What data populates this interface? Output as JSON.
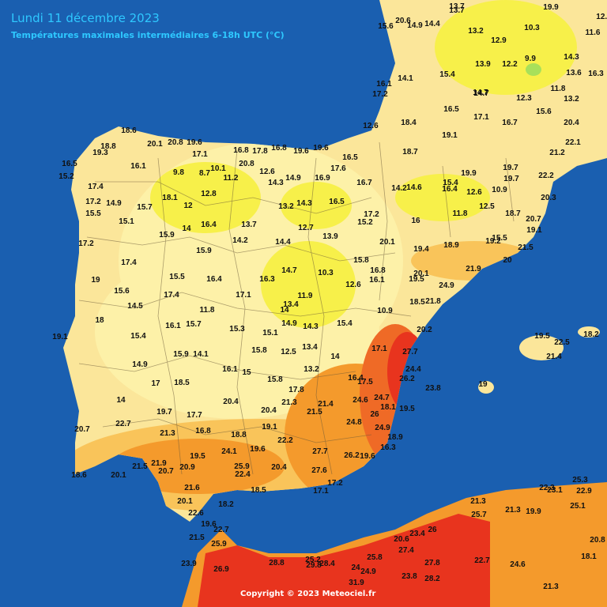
{
  "header": {
    "title": "Lundi 11 décembre 2023",
    "subtitle": "Températures maximales intermédiaires 6-18h UTC (°C)"
  },
  "copyright": "Copyright © 2023 Meteociel.fr",
  "colors": {
    "sea": "#1a5fb0",
    "temp_9_10": "#a8e05a",
    "temp_10_14": "#f7f04a",
    "temp_14_18": "#fdf1a8",
    "temp_18_20": "#fbe69a",
    "temp_20_22": "#f9c45a",
    "temp_22_24": "#f49a2c",
    "temp_24_26": "#ef6a26",
    "temp_26_30": "#e8341e"
  },
  "stations": [
    {
      "value": "18.6"
    },
    {
      "value": "20.1"
    },
    {
      "value": "20.8"
    },
    {
      "value": "19.6"
    },
    {
      "value": "17.1"
    },
    {
      "value": "16.8"
    },
    {
      "value": "17.8"
    },
    {
      "value": "16.8"
    },
    {
      "value": "19.6"
    },
    {
      "value": "19.6"
    },
    {
      "value": "19.3"
    },
    {
      "value": "18.8"
    },
    {
      "value": "16.5"
    },
    {
      "value": "15.2"
    },
    {
      "value": "16.1"
    },
    {
      "value": "9.8"
    },
    {
      "value": "8.7"
    },
    {
      "value": "10.1"
    },
    {
      "value": "11.2"
    },
    {
      "value": "20.8"
    },
    {
      "value": "12.6"
    },
    {
      "value": "14.3"
    },
    {
      "value": "14.9"
    },
    {
      "value": "16.9"
    },
    {
      "value": "17.6"
    },
    {
      "value": "16.5"
    },
    {
      "value": "16.7"
    },
    {
      "value": "17.4"
    },
    {
      "value": "12.8"
    },
    {
      "value": "18.1"
    },
    {
      "value": "12"
    },
    {
      "value": "14.9"
    },
    {
      "value": "15.7"
    },
    {
      "value": "17.2"
    },
    {
      "value": "15.5"
    },
    {
      "value": "15.1"
    },
    {
      "value": "16.4"
    },
    {
      "value": "14"
    },
    {
      "value": "15.9"
    },
    {
      "value": "13.7"
    },
    {
      "value": "13.2"
    },
    {
      "value": "14.3"
    },
    {
      "value": "16.5"
    },
    {
      "value": "17.2"
    },
    {
      "value": "15.2"
    },
    {
      "value": "12.7"
    },
    {
      "value": "13.9"
    },
    {
      "value": "14.2"
    },
    {
      "value": "14.4"
    },
    {
      "value": "17.2"
    },
    {
      "value": "17.4"
    },
    {
      "value": "15.9"
    },
    {
      "value": "16.3"
    },
    {
      "value": "14.7"
    },
    {
      "value": "10.3"
    },
    {
      "value": "15.8"
    },
    {
      "value": "16.8"
    },
    {
      "value": "16.1"
    },
    {
      "value": "12.6"
    },
    {
      "value": "15.5"
    },
    {
      "value": "16.4"
    },
    {
      "value": "19"
    },
    {
      "value": "15.6"
    },
    {
      "value": "17.4"
    },
    {
      "value": "17.1"
    },
    {
      "value": "11.9"
    },
    {
      "value": "14.5"
    },
    {
      "value": "11.8"
    },
    {
      "value": "13.4"
    },
    {
      "value": "14"
    },
    {
      "value": "18"
    },
    {
      "value": "16.1"
    },
    {
      "value": "15.7"
    },
    {
      "value": "15.3"
    },
    {
      "value": "15.1"
    },
    {
      "value": "14.9"
    },
    {
      "value": "14.3"
    },
    {
      "value": "15.4"
    },
    {
      "value": "10.9"
    },
    {
      "value": "19.1"
    },
    {
      "value": "15.4"
    },
    {
      "value": "15.9"
    },
    {
      "value": "14.1"
    },
    {
      "value": "15.8"
    },
    {
      "value": "12.5"
    },
    {
      "value": "13.4"
    },
    {
      "value": "14"
    },
    {
      "value": "17.1"
    },
    {
      "value": "14.9"
    },
    {
      "value": "16.1"
    },
    {
      "value": "15"
    },
    {
      "value": "15.8"
    },
    {
      "value": "13.2"
    },
    {
      "value": "16.4"
    },
    {
      "value": "17.5"
    },
    {
      "value": "17"
    },
    {
      "value": "18.5"
    },
    {
      "value": "17.8"
    },
    {
      "value": "14"
    },
    {
      "value": "20.4"
    },
    {
      "value": "20.4"
    },
    {
      "value": "21.3"
    },
    {
      "value": "21.5"
    },
    {
      "value": "21.4"
    },
    {
      "value": "24.6"
    },
    {
      "value": "24.7"
    },
    {
      "value": "18.1"
    },
    {
      "value": "19.7"
    },
    {
      "value": "17.7"
    },
    {
      "value": "22.7"
    },
    {
      "value": "24.8"
    },
    {
      "value": "26"
    },
    {
      "value": "24.9"
    },
    {
      "value": "19.5"
    },
    {
      "value": "20.7"
    },
    {
      "value": "21.3"
    },
    {
      "value": "16.8"
    },
    {
      "value": "18.8"
    },
    {
      "value": "19.1"
    },
    {
      "value": "22.2"
    },
    {
      "value": "18.9"
    },
    {
      "value": "19.5"
    },
    {
      "value": "24.1"
    },
    {
      "value": "19.6"
    },
    {
      "value": "27.7"
    },
    {
      "value": "26.2"
    },
    {
      "value": "19.6"
    },
    {
      "value": "16.3"
    },
    {
      "value": "21.9"
    },
    {
      "value": "20.9"
    },
    {
      "value": "25.9"
    },
    {
      "value": "20.4"
    },
    {
      "value": "27.6"
    },
    {
      "value": "18.6"
    },
    {
      "value": "20.1"
    },
    {
      "value": "21.5"
    },
    {
      "value": "20.7"
    },
    {
      "value": "22.4"
    },
    {
      "value": "18.5"
    },
    {
      "value": "17.2"
    },
    {
      "value": "17.1"
    },
    {
      "value": "21.6"
    },
    {
      "value": "20.1"
    },
    {
      "value": "18.2"
    },
    {
      "value": "22.6"
    },
    {
      "value": "19.6"
    },
    {
      "value": "22.7"
    },
    {
      "value": "21.5"
    },
    {
      "value": "25.9"
    },
    {
      "value": "23.9"
    },
    {
      "value": "26.9"
    },
    {
      "value": "28.8"
    },
    {
      "value": "25.2"
    },
    {
      "value": "29.8"
    },
    {
      "value": "28.4"
    },
    {
      "value": "24"
    },
    {
      "value": "24.9"
    },
    {
      "value": "25.8"
    },
    {
      "value": "31.9"
    },
    {
      "value": "23.8"
    },
    {
      "value": "28.2"
    },
    {
      "value": "27.8"
    },
    {
      "value": "22.7"
    },
    {
      "value": "24.6"
    },
    {
      "value": "20.6"
    },
    {
      "value": "27.4"
    },
    {
      "value": "23.4"
    },
    {
      "value": "26"
    },
    {
      "value": "25.7"
    },
    {
      "value": "21.3"
    },
    {
      "value": "21.3"
    },
    {
      "value": "19.9"
    },
    {
      "value": "22.3"
    },
    {
      "value": "23.1"
    },
    {
      "value": "25.3"
    },
    {
      "value": "22.9"
    },
    {
      "value": "25.1"
    },
    {
      "value": "20.8"
    },
    {
      "value": "18.1"
    },
    {
      "value": "21.3"
    },
    {
      "value": "23.8"
    },
    {
      "value": "26.2"
    },
    {
      "value": "24.4"
    },
    {
      "value": "27.7"
    },
    {
      "value": "20.2"
    },
    {
      "value": "21.8"
    },
    {
      "value": "18.5"
    },
    {
      "value": "24.9"
    },
    {
      "value": "20.1"
    },
    {
      "value": "19.5"
    },
    {
      "value": "21.9"
    },
    {
      "value": "18.9"
    },
    {
      "value": "19.4"
    },
    {
      "value": "20.1"
    },
    {
      "value": "16"
    },
    {
      "value": "11.8"
    },
    {
      "value": "14.6"
    },
    {
      "value": "14.2"
    },
    {
      "value": "15.4"
    },
    {
      "value": "16.4"
    },
    {
      "value": "12.6"
    },
    {
      "value": "19.1"
    },
    {
      "value": "18.7"
    },
    {
      "value": "19.9"
    },
    {
      "value": "18.4"
    },
    {
      "value": "16.5"
    },
    {
      "value": "17.1"
    },
    {
      "value": "16.7"
    },
    {
      "value": "15.4"
    },
    {
      "value": "14.1"
    },
    {
      "value": "14.9"
    },
    {
      "value": "14.4"
    },
    {
      "value": "13.7"
    },
    {
      "value": "13.2"
    },
    {
      "value": "12.9"
    },
    {
      "value": "10.3"
    },
    {
      "value": "9.9"
    },
    {
      "value": "12.2"
    },
    {
      "value": "13.9"
    },
    {
      "value": "14.3"
    },
    {
      "value": "16.3"
    },
    {
      "value": "13.6"
    },
    {
      "value": "11.8"
    },
    {
      "value": "13.2"
    },
    {
      "value": "12.3"
    },
    {
      "value": "14.7"
    },
    {
      "value": "15.6"
    },
    {
      "value": "20.4"
    },
    {
      "value": "22.1"
    },
    {
      "value": "21.2"
    },
    {
      "value": "22.2"
    },
    {
      "value": "20.3"
    },
    {
      "value": "20.7"
    },
    {
      "value": "19.1"
    },
    {
      "value": "21.5"
    },
    {
      "value": "20"
    },
    {
      "value": "19.2"
    },
    {
      "value": "19.7"
    },
    {
      "value": "10.9"
    },
    {
      "value": "12.5"
    },
    {
      "value": "19.5"
    },
    {
      "value": "22.5"
    },
    {
      "value": "21.4"
    },
    {
      "value": "18.2"
    },
    {
      "value": "19"
    },
    {
      "value": "15.6"
    },
    {
      "value": "16.1"
    },
    {
      "value": "17.2"
    },
    {
      "value": "12.6"
    },
    {
      "value": "18.7"
    },
    {
      "value": "19.7"
    },
    {
      "value": "20.6"
    },
    {
      "value": "19.9"
    },
    {
      "value": "12.6"
    },
    {
      "value": "11.6"
    },
    {
      "value": "13.7"
    },
    {
      "value": "15.5"
    },
    {
      "value": "14.7"
    }
  ]
}
